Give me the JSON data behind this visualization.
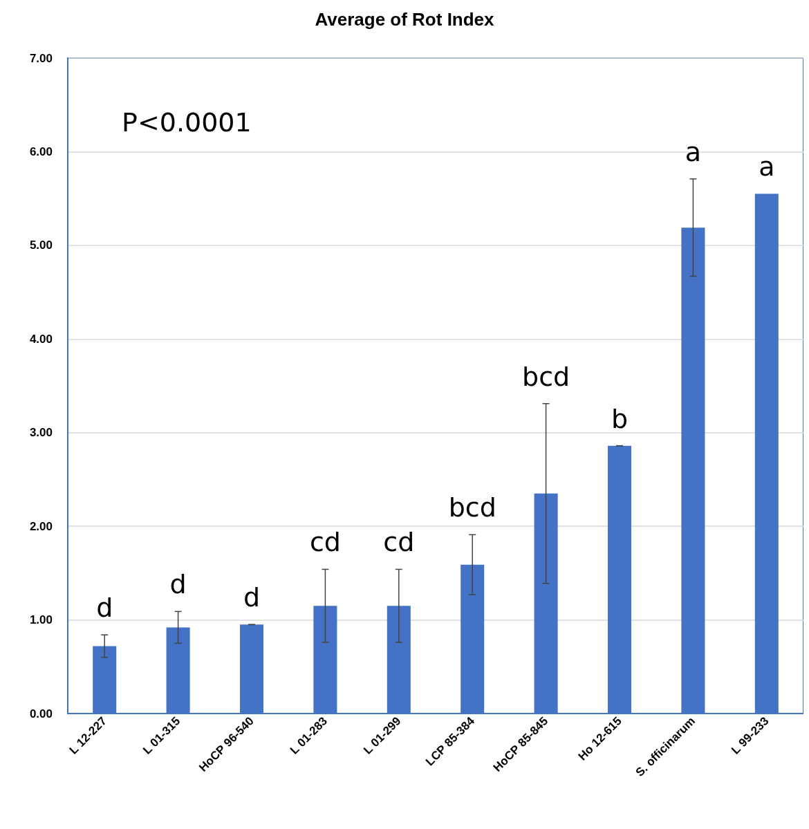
{
  "chart_data": {
    "type": "bar",
    "title": "Average of Rot Index",
    "categories": [
      "L 12-227",
      "L 01-315",
      "HoCP 96-540",
      "L 01-283",
      "L 01-299",
      "LCP 85-384",
      "HoCP 85-845",
      "Ho 12-615",
      "S. officinarum",
      "L 99-233"
    ],
    "values": [
      0.72,
      0.92,
      0.95,
      1.15,
      1.15,
      1.59,
      2.35,
      2.86,
      5.19,
      5.55
    ],
    "errors": [
      0.12,
      0.17,
      0,
      0.39,
      0.39,
      0.32,
      0.96,
      0,
      0.52,
      null
    ],
    "color": "#4472c4",
    "ylim": [
      0,
      7
    ],
    "yticks": [
      {
        "value": 0,
        "label": "0.00"
      },
      {
        "value": 1,
        "label": "1.00"
      },
      {
        "value": 2,
        "label": "2.00"
      },
      {
        "value": 3,
        "label": "3.00"
      },
      {
        "value": 4,
        "label": "4.00"
      },
      {
        "value": 5,
        "label": "5.00"
      },
      {
        "value": 6,
        "label": "6.00"
      },
      {
        "value": 7,
        "label": "7.00"
      }
    ],
    "grid": "y",
    "annotations": [
      "P<0.0001",
      "d",
      "d",
      "d",
      "cd",
      "cd",
      "bcd",
      "bcd",
      "b",
      "a",
      "a"
    ]
  }
}
